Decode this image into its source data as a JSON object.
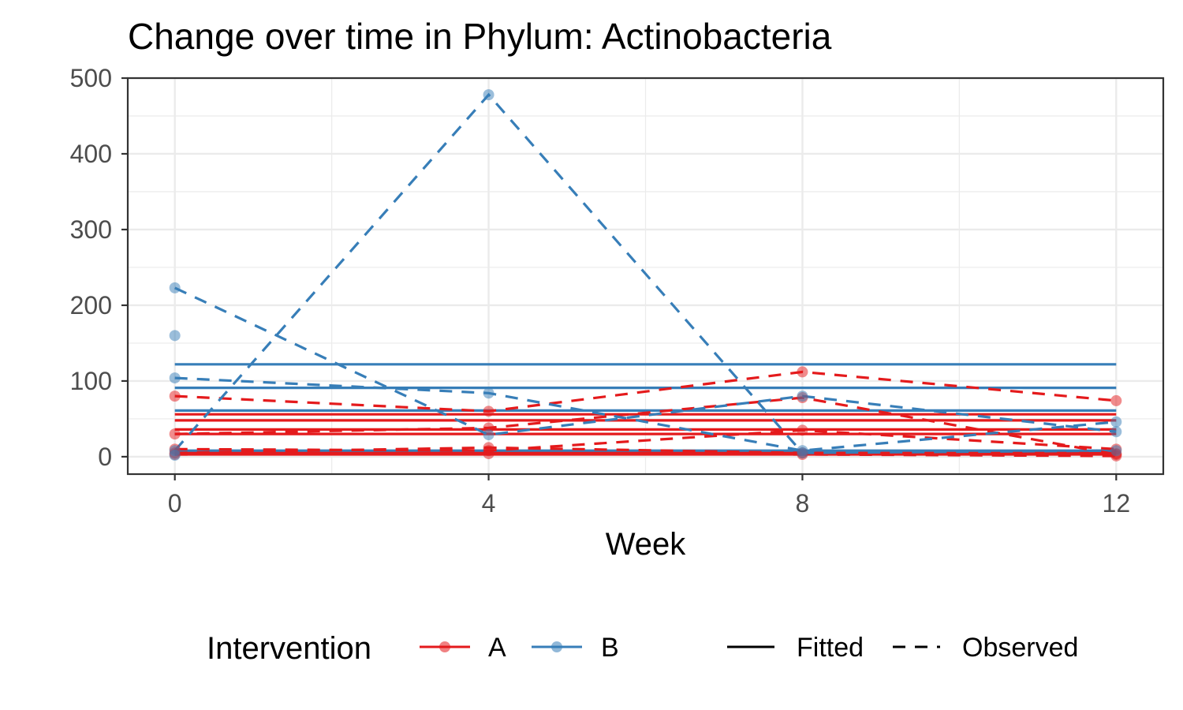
{
  "chart_data": {
    "type": "line",
    "title": "Change over time in Phylum: Actinobacteria",
    "xlabel": "Week",
    "ylabel": "",
    "x_ticks": [
      0,
      4,
      8,
      12
    ],
    "y_ticks": [
      0,
      100,
      200,
      300,
      400,
      500
    ],
    "xlim": [
      -0.6,
      12.6
    ],
    "ylim": [
      -23,
      500
    ],
    "grid": true,
    "legend_position": "bottom",
    "colors": {
      "A": "#e41a1c",
      "B": "#377eb8",
      "fitted_legend": "#000000"
    },
    "legend": {
      "title": "Intervention",
      "groups": [
        "A",
        "B"
      ],
      "line_types": [
        "Fitted",
        "Observed"
      ]
    },
    "x": [
      0,
      4,
      8,
      12
    ],
    "series": [
      {
        "group": "A",
        "kind": "observed",
        "values": [
          80,
          60,
          112,
          74
        ]
      },
      {
        "group": "A",
        "kind": "observed",
        "values": [
          30,
          38,
          78,
          3
        ]
      },
      {
        "group": "A",
        "kind": "observed",
        "values": [
          10,
          8,
          35,
          10
        ]
      },
      {
        "group": "A",
        "kind": "observed",
        "values": [
          5,
          12,
          5,
          4
        ]
      },
      {
        "group": "A",
        "kind": "observed",
        "values": [
          3,
          4,
          3,
          1
        ]
      },
      {
        "group": "B",
        "kind": "observed",
        "values": [
          104,
          84,
          8,
          46
        ]
      },
      {
        "group": "B",
        "kind": "observed",
        "values": [
          223,
          29,
          80,
          33
        ]
      },
      {
        "group": "B",
        "kind": "observed",
        "values": [
          8,
          478,
          5,
          8
        ]
      },
      {
        "group": "A",
        "kind": "fitted",
        "values": [
          56,
          56,
          56,
          56
        ]
      },
      {
        "group": "A",
        "kind": "fitted",
        "values": [
          48,
          48,
          48,
          48
        ]
      },
      {
        "group": "A",
        "kind": "fitted",
        "values": [
          36,
          36,
          36,
          36
        ]
      },
      {
        "group": "A",
        "kind": "fitted",
        "values": [
          30,
          30,
          30,
          30
        ]
      },
      {
        "group": "A",
        "kind": "fitted",
        "values": [
          6,
          6,
          6,
          6
        ]
      },
      {
        "group": "A",
        "kind": "fitted",
        "values": [
          3,
          3,
          3,
          3
        ]
      },
      {
        "group": "B",
        "kind": "fitted",
        "values": [
          122,
          122,
          122,
          122
        ]
      },
      {
        "group": "B",
        "kind": "fitted",
        "values": [
          91,
          91,
          91,
          91
        ]
      },
      {
        "group": "B",
        "kind": "fitted",
        "values": [
          61,
          61,
          61,
          61
        ]
      },
      {
        "group": "B",
        "kind": "fitted",
        "values": [
          8,
          8,
          8,
          8
        ]
      }
    ],
    "extra_points": [
      {
        "group": "B",
        "x": 0,
        "y": 160
      },
      {
        "group": "B",
        "x": 0,
        "y": 2
      }
    ]
  }
}
